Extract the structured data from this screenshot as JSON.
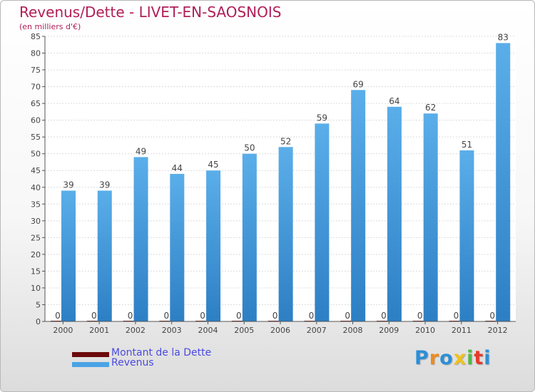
{
  "chart_data": {
    "type": "bar",
    "title": "Revenus/Dette - LIVET-EN-SAOSNOIS",
    "subtitle": "(en milliers d'€)",
    "categories": [
      "2000",
      "2001",
      "2002",
      "2003",
      "2004",
      "2005",
      "2006",
      "2007",
      "2008",
      "2009",
      "2010",
      "2011",
      "2012"
    ],
    "series": [
      {
        "name": "Montant de la Dette",
        "color": "#6b0a0a",
        "values": [
          0,
          0,
          0,
          0,
          0,
          0,
          0,
          0,
          0,
          0,
          0,
          0,
          0
        ]
      },
      {
        "name": "Revenus",
        "color": "#4aa3e6",
        "values": [
          39,
          39,
          49,
          44,
          45,
          50,
          52,
          59,
          69,
          64,
          62,
          51,
          83
        ]
      }
    ],
    "ylim": [
      0,
      85
    ],
    "yticks": [
      0,
      5,
      10,
      15,
      20,
      25,
      30,
      35,
      40,
      45,
      50,
      55,
      60,
      65,
      70,
      75,
      80,
      85
    ],
    "grid": true,
    "legend_position": "bottom-left"
  },
  "logo": {
    "letters": [
      {
        "ch": "P",
        "color": "#2c8fd8"
      },
      {
        "ch": "r",
        "color": "#f08a1c"
      },
      {
        "ch": "o",
        "color": "#2c8fd8"
      },
      {
        "ch": "x",
        "color": "#f0c21c"
      },
      {
        "ch": "i",
        "color": "#4fb848"
      },
      {
        "ch": "t",
        "color": "#e43b2c"
      },
      {
        "ch": "i",
        "color": "#2c8fd8"
      }
    ]
  }
}
